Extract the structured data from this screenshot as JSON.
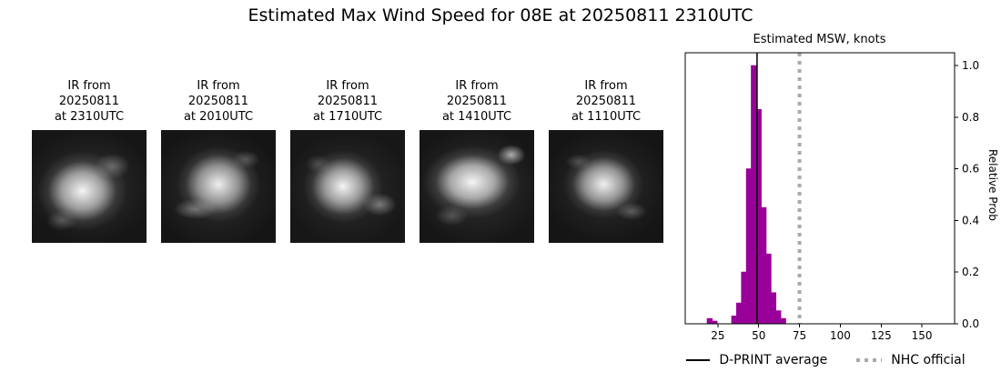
{
  "title": "Estimated Max Wind Speed for 08E at 20250811 2310UTC",
  "ir_panels": [
    {
      "lines": [
        "IR from",
        "20250811",
        "at 2310UTC"
      ]
    },
    {
      "lines": [
        "IR from",
        "20250811",
        "at 2010UTC"
      ]
    },
    {
      "lines": [
        "IR from",
        "20250811",
        "at 1710UTC"
      ]
    },
    {
      "lines": [
        "IR from",
        "20250811",
        "at 1410UTC"
      ]
    },
    {
      "lines": [
        "IR from",
        "20250811",
        "at 1110UTC"
      ]
    }
  ],
  "chart_data": {
    "type": "bar",
    "title": "Estimated MSW, knots",
    "ylabel": "Relative Prob",
    "xlim": [
      5,
      170
    ],
    "ylim": [
      0,
      1.05
    ],
    "xticks": [
      25,
      50,
      75,
      100,
      125,
      150
    ],
    "yticks": [
      0.0,
      0.2,
      0.4,
      0.6,
      0.8,
      1.0
    ],
    "bin_width": 3,
    "bins": [
      {
        "x": 20,
        "p": 0.02
      },
      {
        "x": 23,
        "p": 0.01
      },
      {
        "x": 35,
        "p": 0.03
      },
      {
        "x": 38,
        "p": 0.08
      },
      {
        "x": 41,
        "p": 0.2
      },
      {
        "x": 44,
        "p": 0.6
      },
      {
        "x": 47,
        "p": 1.0
      },
      {
        "x": 50,
        "p": 0.83
      },
      {
        "x": 53,
        "p": 0.45
      },
      {
        "x": 56,
        "p": 0.27
      },
      {
        "x": 59,
        "p": 0.12
      },
      {
        "x": 62,
        "p": 0.05
      },
      {
        "x": 65,
        "p": 0.02
      }
    ],
    "dprint_average": 49,
    "nhc_official": 75,
    "bar_color": "#990099",
    "avg_line_color": "#000000",
    "nhc_line_color": "#aaaaaa",
    "legend": [
      {
        "label": "D-PRINT average",
        "style": "solid-black-line"
      },
      {
        "label": "NHC official",
        "style": "dotted-gray-line"
      }
    ]
  }
}
